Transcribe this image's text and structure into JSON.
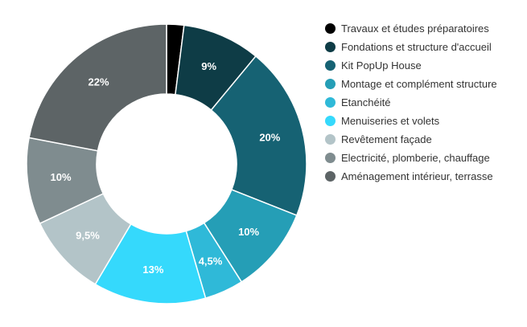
{
  "chart_data": {
    "type": "pie",
    "donut": true,
    "categories": [
      "Travaux et études préparatoires",
      "Fondations et structure d'accueil",
      "Kit PopUp House",
      "Montage et complément structure",
      "Etanchéité",
      "Menuiseries et volets",
      "Revêtement façade",
      "Electricité, plomberie, chauffage",
      "Aménagement intérieur, terrasse"
    ],
    "values": [
      2,
      9,
      20,
      10,
      4.5,
      13,
      9.5,
      10,
      22
    ],
    "data_labels": [
      "",
      "9%",
      "20%",
      "10%",
      "4,5%",
      "13%",
      "9,5%",
      "10%",
      "22%"
    ],
    "colors": [
      "#000000",
      "#0e3c46",
      "#166273",
      "#259eb6",
      "#2fb9d8",
      "#35d9fc",
      "#b3c4c8",
      "#7f8c8f",
      "#5d6466"
    ],
    "legend_position": "right",
    "title": ""
  }
}
